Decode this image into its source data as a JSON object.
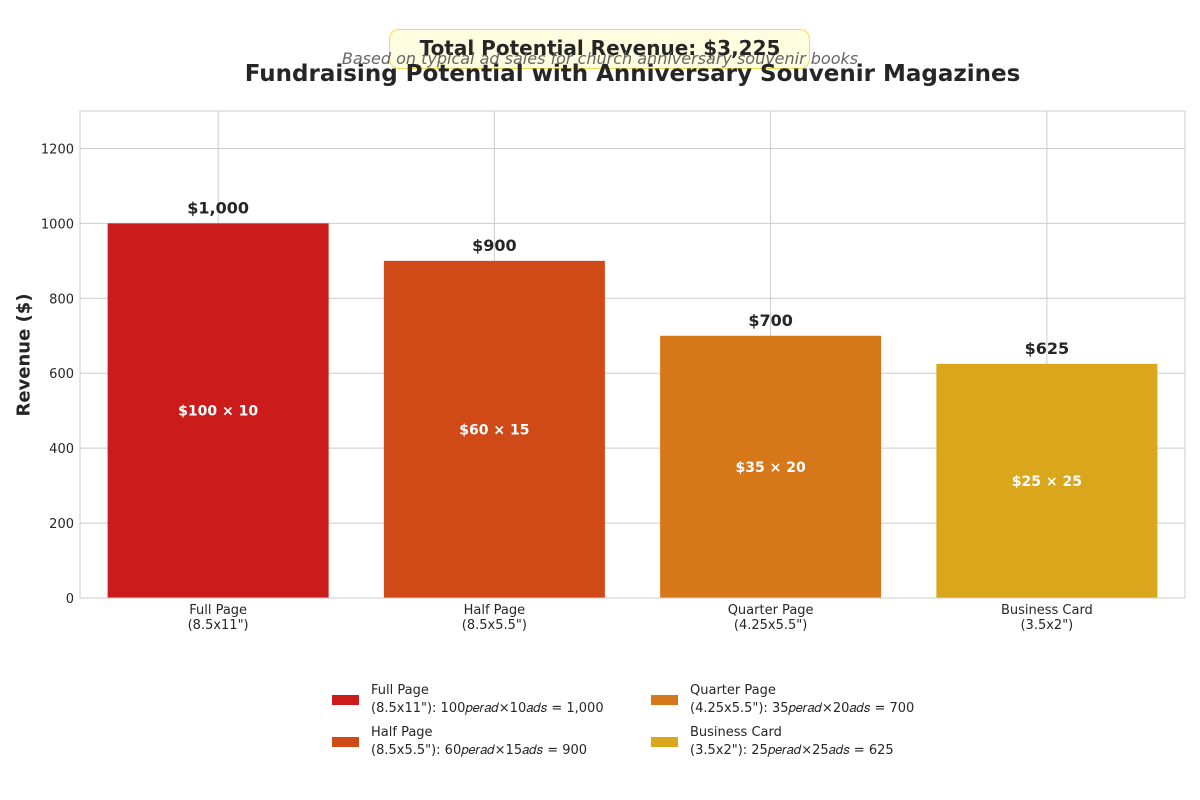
{
  "header": {
    "total_label": "Total Potential Revenue: $3,225",
    "subtitle": "Based on typical ad sales for church anniversary souvenir books",
    "title": "Fundraising Potential with Anniversary Souvenir Magazines"
  },
  "chart_data": {
    "type": "bar",
    "title": "Fundraising Potential with Anniversary Souvenir Magazines",
    "xlabel": "",
    "ylabel": "Revenue ($)",
    "ylim": [
      0,
      1300
    ],
    "yticks": [
      0,
      200,
      400,
      600,
      800,
      1000,
      1200
    ],
    "grid": true,
    "legend_position": "bottom-center",
    "categories": [
      [
        "Full Page",
        "(8.5x11\")"
      ],
      [
        "Half Page",
        "(8.5x5.5\")"
      ],
      [
        "Quarter Page",
        "(4.25x5.5\")"
      ],
      [
        "Business Card",
        "(3.5x2\")"
      ]
    ],
    "values": [
      1000,
      900,
      700,
      625
    ],
    "value_labels": [
      "$1,000",
      "$900",
      "$700",
      "$625"
    ],
    "inner_labels": [
      "$100 × 10",
      "$60 × 15",
      "$35 × 20",
      "$25 × 25"
    ],
    "colors": [
      "#cc1b1b",
      "#d04a18",
      "#d6771a",
      "#d9a61c"
    ]
  },
  "legend": {
    "items": [
      {
        "line1": "Full Page",
        "line2": "(8.5x11\"): 100𝑝𝑒𝑟𝑎𝑑×10𝑎𝑑𝑠 = 1,000",
        "color": "#cc1b1b"
      },
      {
        "line1": "Half Page",
        "line2": "(8.5x5.5\"): 60𝑝𝑒𝑟𝑎𝑑×15𝑎𝑑𝑠 = 900",
        "color": "#d04a18"
      },
      {
        "line1": "Quarter Page",
        "line2": "(4.25x5.5\"): 35𝑝𝑒𝑟𝑎𝑑×20𝑎𝑑𝑠 = 700",
        "color": "#d6771a"
      },
      {
        "line1": "Business Card",
        "line2": "(3.5x2\"): 25𝑝𝑒𝑟𝑎𝑑×25𝑎𝑑𝑠 = 625",
        "color": "#d9a61c"
      }
    ]
  }
}
